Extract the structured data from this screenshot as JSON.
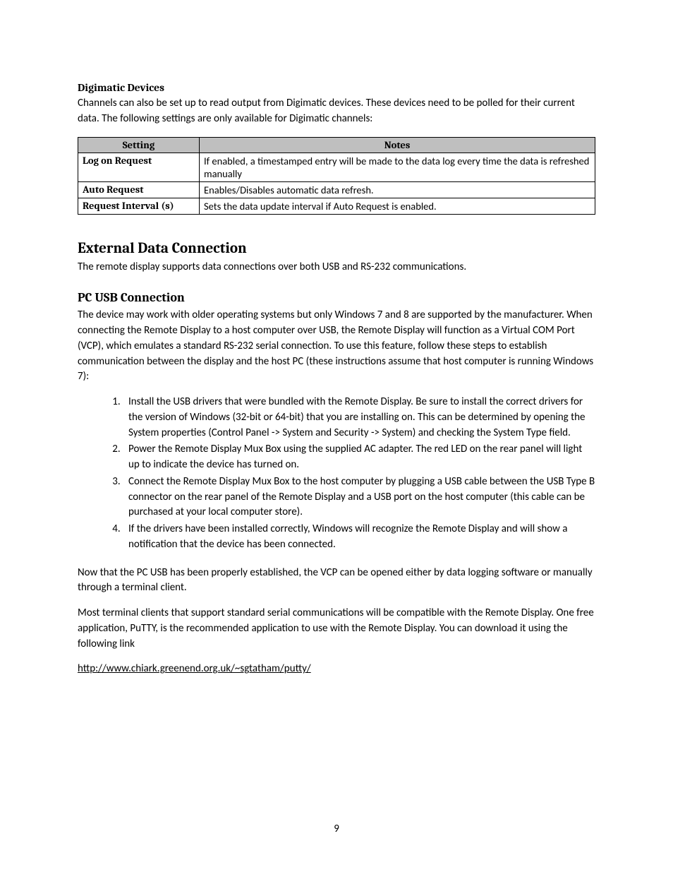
{
  "section1": {
    "heading": "Digimatic Devices",
    "paragraph": "Channels can also be set up to read output from Digimatic devices. These devices need to be polled for their current data. The following settings are only available for Digimatic channels:"
  },
  "table": {
    "header_setting": "Setting",
    "header_notes": "Notes",
    "rows": [
      {
        "setting": "Log on Request",
        "notes": "If enabled, a timestamped entry will be made to the data log every time the data is refreshed manually"
      },
      {
        "setting": "Auto Request",
        "notes": "Enables/Disables automatic data refresh."
      },
      {
        "setting": "Request Interval (s)",
        "notes": "Sets the data update interval if Auto Request is enabled."
      }
    ]
  },
  "section2": {
    "heading": "External Data Connection",
    "paragraph": "The remote display supports data connections over both USB and RS-232 communications."
  },
  "section3": {
    "heading": "PC USB Connection",
    "paragraph": "The device may work with older operating systems but only Windows 7 and 8 are supported by the manufacturer.  When connecting the Remote Display to a host computer over USB, the Remote Display will function as a Virtual COM Port (VCP), which emulates a standard RS-232 serial connection. To use this feature, follow these steps to establish communication between the display and the host PC (these instructions assume that host computer is running Windows 7):",
    "list": [
      "Install the USB drivers that were bundled with the Remote Display. Be sure to install the correct drivers for the version of Windows (32-bit or 64-bit) that you are installing on. This can be determined by opening the System properties (Control Panel -> System and Security -> System) and checking the System Type field.",
      "Power the Remote Display Mux Box using the supplied AC adapter. The red LED on the rear panel will light up to indicate the device has turned on.",
      "Connect the Remote Display Mux Box to the host computer by plugging a USB cable between the USB Type B connector on the rear panel of the Remote Display and a USB port on the host computer (this cable can be purchased at your local computer store).",
      "If the drivers have been installed correctly, Windows will recognize the Remote Display and will show a notification that the device has been connected."
    ],
    "para2": "Now that the PC USB has been properly established, the VCP can be opened either by data logging software or manually through a terminal client.",
    "para3": "Most terminal clients that support standard serial communications will be compatible with the Remote Display. One free application, PuTTY, is the recommended application to use with the Remote Display. You can download it using the following link",
    "link": "http://www.chiark.greenend.org.uk/~sgtatham/putty/"
  },
  "page_number": "9"
}
